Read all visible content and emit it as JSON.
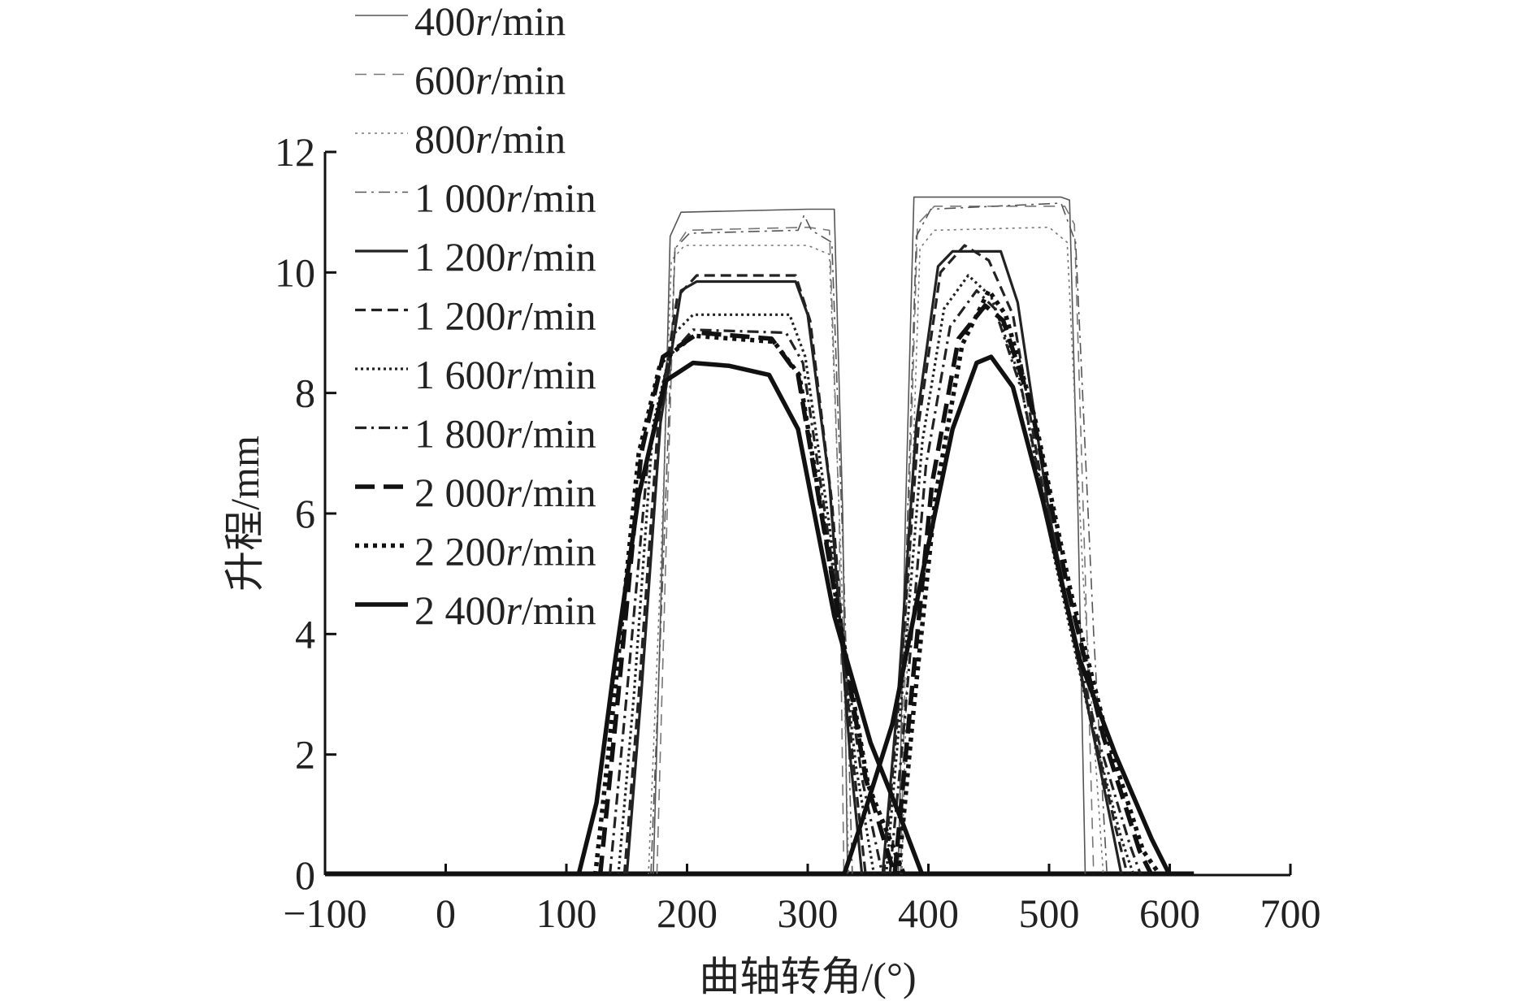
{
  "chart_data": {
    "type": "line",
    "title": "",
    "xlabel": "曲轴转角/(°)",
    "ylabel": "升程/mm",
    "xlim": [
      -100,
      700
    ],
    "ylim": [
      0,
      12
    ],
    "xticks": [
      -100,
      0,
      100,
      200,
      300,
      400,
      500,
      600,
      700
    ],
    "yticks": [
      0,
      2,
      4,
      6,
      8,
      10,
      12
    ],
    "xtick_labels": [
      "−100",
      "0",
      "100",
      "200",
      "300",
      "400",
      "500",
      "600",
      "700"
    ],
    "ytick_labels": [
      "0",
      "2",
      "4",
      "6",
      "8",
      "10",
      "12"
    ],
    "grid": false,
    "legend_position": "top-left",
    "series": [
      {
        "name": "400r/min",
        "name_num": "400",
        "name_unit": "min",
        "style": {
          "dash": "",
          "width": 1.6,
          "color": "#555555"
        },
        "valve1": [
          [
            172,
            0
          ],
          [
            179,
            5
          ],
          [
            186,
            10.6
          ],
          [
            195,
            11.0
          ],
          [
            300,
            11.05
          ],
          [
            322,
            11.05
          ],
          [
            329,
            6
          ],
          [
            333,
            0
          ]
        ],
        "valve2": [
          [
            375,
            0
          ],
          [
            381,
            6
          ],
          [
            388,
            11.25
          ],
          [
            400,
            11.25
          ],
          [
            510,
            11.25
          ],
          [
            517,
            11.2
          ],
          [
            524,
            6
          ],
          [
            530,
            0
          ]
        ]
      },
      {
        "name": "600r/min",
        "name_num": "600",
        "name_unit": "min",
        "style": {
          "dash": "14,9",
          "width": 1.6,
          "color": "#777777"
        },
        "valve1": [
          [
            175,
            0
          ],
          [
            182,
            5
          ],
          [
            190,
            10.4
          ],
          [
            200,
            10.7
          ],
          [
            300,
            10.75
          ],
          [
            318,
            10.7
          ],
          [
            326,
            6
          ],
          [
            330,
            0
          ]
        ],
        "valve2": [
          [
            377,
            0
          ],
          [
            383,
            5.5
          ],
          [
            391,
            10.8
          ],
          [
            405,
            11.1
          ],
          [
            513,
            11.1
          ],
          [
            521,
            10.8
          ],
          [
            530,
            5
          ],
          [
            537,
            0
          ]
        ]
      },
      {
        "name": "800r/min",
        "name_num": "800",
        "name_unit": "min",
        "style": {
          "dash": "3,5",
          "width": 1.6,
          "color": "#777777"
        },
        "valve1": [
          [
            168,
            0
          ],
          [
            178,
            5
          ],
          [
            187,
            10.2
          ],
          [
            198,
            10.45
          ],
          [
            300,
            10.45
          ],
          [
            318,
            10.3
          ],
          [
            328,
            5
          ],
          [
            334,
            0
          ]
        ],
        "valve2": [
          [
            378,
            0
          ],
          [
            385,
            5.5
          ],
          [
            393,
            10.4
          ],
          [
            405,
            10.7
          ],
          [
            500,
            10.75
          ],
          [
            515,
            10.5
          ],
          [
            528,
            5
          ],
          [
            545,
            0
          ]
        ]
      },
      {
        "name": "1 000r/min",
        "name_num": "1 000",
        "name_unit": "min",
        "style": {
          "dash": "14,6,3,6",
          "width": 1.6,
          "color": "#555555"
        },
        "valve1": [
          [
            170,
            0
          ],
          [
            180,
            5
          ],
          [
            190,
            10.4
          ],
          [
            202,
            10.65
          ],
          [
            292,
            10.7
          ],
          [
            297,
            10.95
          ],
          [
            303,
            10.7
          ],
          [
            320,
            10.5
          ],
          [
            330,
            5
          ],
          [
            337,
            0
          ]
        ],
        "valve2": [
          [
            375,
            0
          ],
          [
            382,
            5.5
          ],
          [
            390,
            10.6
          ],
          [
            402,
            11.05
          ],
          [
            510,
            11.15
          ],
          [
            522,
            10.5
          ],
          [
            537,
            4
          ],
          [
            548,
            0
          ]
        ]
      },
      {
        "name": "1 200r/min",
        "name_num": "1 200",
        "name_unit": "min",
        "style": {
          "dash": "",
          "width": 3.2,
          "color": "#222222"
        },
        "valve1": [
          [
            150,
            0
          ],
          [
            162,
            3
          ],
          [
            178,
            7.5
          ],
          [
            195,
            9.7
          ],
          [
            208,
            9.85
          ],
          [
            290,
            9.85
          ],
          [
            300,
            9.3
          ],
          [
            318,
            6.5
          ],
          [
            335,
            2
          ],
          [
            345,
            0
          ]
        ],
        "valve2": [
          [
            362,
            0
          ],
          [
            375,
            3
          ],
          [
            390,
            7.5
          ],
          [
            408,
            10.1
          ],
          [
            420,
            10.35
          ],
          [
            460,
            10.35
          ],
          [
            474,
            9.5
          ],
          [
            500,
            6
          ],
          [
            530,
            3
          ],
          [
            550,
            1
          ],
          [
            560,
            0
          ]
        ]
      },
      {
        "name": "1 200r/min",
        "name_num": "1 200",
        "name_unit": "min",
        "style": {
          "dash": "13,7",
          "width": 3.2,
          "color": "#222222"
        },
        "valve1": [
          [
            148,
            0
          ],
          [
            160,
            3
          ],
          [
            176,
            7.5
          ],
          [
            192,
            9.6
          ],
          [
            208,
            9.95
          ],
          [
            290,
            9.95
          ],
          [
            302,
            9.2
          ],
          [
            320,
            6.2
          ],
          [
            337,
            2
          ],
          [
            348,
            0
          ]
        ],
        "valve2": [
          [
            363,
            0
          ],
          [
            376,
            3
          ],
          [
            392,
            7.5
          ],
          [
            410,
            10.0
          ],
          [
            430,
            10.45
          ],
          [
            450,
            10.2
          ],
          [
            470,
            9.3
          ],
          [
            500,
            5.8
          ],
          [
            530,
            3
          ],
          [
            555,
            0.8
          ],
          [
            565,
            0
          ]
        ]
      },
      {
        "name": "1 600r/min",
        "name_num": "1 600",
        "name_unit": "min",
        "style": {
          "dash": "3,4",
          "width": 3.2,
          "color": "#222222"
        },
        "valve1": [
          [
            143,
            0
          ],
          [
            156,
            3
          ],
          [
            172,
            7.5
          ],
          [
            190,
            9.0
          ],
          [
            205,
            9.3
          ],
          [
            285,
            9.3
          ],
          [
            298,
            8.6
          ],
          [
            318,
            5.8
          ],
          [
            340,
            1.8
          ],
          [
            355,
            0
          ]
        ],
        "valve2": [
          [
            365,
            0
          ],
          [
            378,
            3
          ],
          [
            395,
            7.2
          ],
          [
            413,
            9.4
          ],
          [
            433,
            9.95
          ],
          [
            452,
            9.6
          ],
          [
            475,
            8.3
          ],
          [
            505,
            5.2
          ],
          [
            535,
            2.5
          ],
          [
            560,
            0.6
          ],
          [
            570,
            0
          ]
        ]
      },
      {
        "name": "1 800r/min",
        "name_num": "1 800",
        "name_unit": "min",
        "style": {
          "dash": "14,6,3,6",
          "width": 3.2,
          "color": "#222222"
        },
        "valve1": [
          [
            136,
            0
          ],
          [
            150,
            3
          ],
          [
            168,
            7
          ],
          [
            185,
            8.6
          ],
          [
            205,
            9.05
          ],
          [
            282,
            9.0
          ],
          [
            296,
            8.5
          ],
          [
            318,
            5.5
          ],
          [
            345,
            1.6
          ],
          [
            362,
            0
          ]
        ],
        "valve2": [
          [
            368,
            0
          ],
          [
            380,
            2.5
          ],
          [
            398,
            6.8
          ],
          [
            418,
            9.1
          ],
          [
            440,
            9.7
          ],
          [
            455,
            9.4
          ],
          [
            478,
            8.0
          ],
          [
            508,
            5.0
          ],
          [
            540,
            2.3
          ],
          [
            567,
            0.5
          ],
          [
            576,
            0
          ]
        ]
      },
      {
        "name": "2 000r/min",
        "name_num": "2 000",
        "name_unit": "min",
        "style": {
          "dash": "24,11",
          "width": 5.5,
          "color": "#111111"
        },
        "valve1": [
          [
            128,
            0
          ],
          [
            143,
            3
          ],
          [
            162,
            7
          ],
          [
            180,
            8.6
          ],
          [
            210,
            9.0
          ],
          [
            270,
            8.9
          ],
          [
            292,
            8.3
          ],
          [
            318,
            5.2
          ],
          [
            348,
            1.6
          ],
          [
            372,
            0
          ]
        ],
        "valve2": [
          [
            372,
            0
          ],
          [
            385,
            2.8
          ],
          [
            403,
            6.5
          ],
          [
            425,
            8.9
          ],
          [
            447,
            9.45
          ],
          [
            462,
            9.2
          ],
          [
            485,
            7.8
          ],
          [
            515,
            4.8
          ],
          [
            545,
            2.3
          ],
          [
            575,
            0.4
          ],
          [
            585,
            0
          ]
        ]
      },
      {
        "name": "2 200r/min",
        "name_num": "2 200",
        "name_unit": "min",
        "style": {
          "dash": "5,6",
          "width": 5.5,
          "color": "#111111"
        },
        "valve1": [
          [
            124,
            0
          ],
          [
            140,
            3
          ],
          [
            160,
            7
          ],
          [
            178,
            8.5
          ],
          [
            205,
            8.95
          ],
          [
            272,
            8.85
          ],
          [
            293,
            8.3
          ],
          [
            320,
            5.0
          ],
          [
            350,
            1.5
          ],
          [
            380,
            0
          ]
        ],
        "valve2": [
          [
            375,
            0
          ],
          [
            388,
            2.8
          ],
          [
            406,
            6.3
          ],
          [
            428,
            8.8
          ],
          [
            450,
            9.7
          ],
          [
            464,
            9.3
          ],
          [
            488,
            7.6
          ],
          [
            518,
            4.7
          ],
          [
            548,
            2.3
          ],
          [
            578,
            0.4
          ],
          [
            592,
            0
          ]
        ]
      },
      {
        "name": "2 400r/min",
        "name_num": "2 400",
        "name_unit": "min",
        "style": {
          "dash": "",
          "width": 5.5,
          "color": "#111111"
        },
        "valve1": [
          [
            110,
            0
          ],
          [
            125,
            1.2
          ],
          [
            140,
            3.5
          ],
          [
            160,
            6.3
          ],
          [
            182,
            8.2
          ],
          [
            205,
            8.5
          ],
          [
            235,
            8.45
          ],
          [
            268,
            8.3
          ],
          [
            292,
            7.4
          ],
          [
            322,
            4.3
          ],
          [
            352,
            2.2
          ],
          [
            378,
            0.9
          ],
          [
            395,
            0
          ]
        ],
        "valve2": [
          [
            330,
            0
          ],
          [
            345,
            0.9
          ],
          [
            370,
            2.5
          ],
          [
            395,
            5.0
          ],
          [
            420,
            7.4
          ],
          [
            440,
            8.5
          ],
          [
            452,
            8.6
          ],
          [
            470,
            8.1
          ],
          [
            495,
            6.2
          ],
          [
            525,
            3.6
          ],
          [
            555,
            2.0
          ],
          [
            585,
            0.6
          ],
          [
            600,
            0
          ]
        ]
      }
    ]
  }
}
